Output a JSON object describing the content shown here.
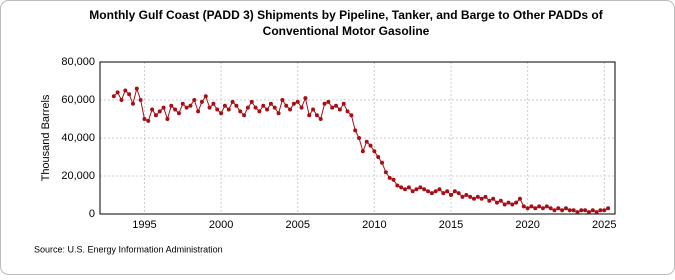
{
  "chart_data": {
    "type": "line",
    "title": [
      "Monthly Gulf Coast (PADD 3) Shipments by Pipeline, Tanker, and Barge to Other PADDs of",
      "Conventional Motor Gasoline"
    ],
    "y_label": "Thousand Barrels",
    "source": "Source: U.S. Energy Information Administration",
    "x": [
      1993,
      1993.25,
      1993.5,
      1993.75,
      1994,
      1994.25,
      1994.5,
      1994.75,
      1995,
      1995.25,
      1995.5,
      1995.75,
      1996,
      1996.25,
      1996.5,
      1996.75,
      1997,
      1997.25,
      1997.5,
      1997.75,
      1998,
      1998.25,
      1998.5,
      1998.75,
      1999,
      1999.25,
      1999.5,
      1999.75,
      2000,
      2000.25,
      2000.5,
      2000.75,
      2001,
      2001.25,
      2001.5,
      2001.75,
      2002,
      2002.25,
      2002.5,
      2002.75,
      2003,
      2003.25,
      2003.5,
      2003.75,
      2004,
      2004.25,
      2004.5,
      2004.75,
      2005,
      2005.25,
      2005.5,
      2005.75,
      2006,
      2006.25,
      2006.5,
      2006.75,
      2007,
      2007.25,
      2007.5,
      2007.75,
      2008,
      2008.25,
      2008.5,
      2008.75,
      2009,
      2009.25,
      2009.5,
      2009.75,
      2010,
      2010.25,
      2010.5,
      2010.75,
      2011,
      2011.25,
      2011.5,
      2011.75,
      2012,
      2012.25,
      2012.5,
      2012.75,
      2013,
      2013.25,
      2013.5,
      2013.75,
      2014,
      2014.25,
      2014.5,
      2014.75,
      2015,
      2015.25,
      2015.5,
      2015.75,
      2016,
      2016.25,
      2016.5,
      2016.75,
      2017,
      2017.25,
      2017.5,
      2017.75,
      2018,
      2018.25,
      2018.5,
      2018.75,
      2019,
      2019.25,
      2019.5,
      2019.75,
      2020,
      2020.25,
      2020.5,
      2020.75,
      2021,
      2021.25,
      2021.5,
      2021.75,
      2022,
      2022.25,
      2022.5,
      2022.75,
      2023,
      2023.25,
      2023.5,
      2023.75,
      2024,
      2024.25,
      2024.5,
      2024.75,
      2025,
      2025.25
    ],
    "series": [
      {
        "color": "#a50f15",
        "values": [
          62000,
          64000,
          60000,
          65000,
          63000,
          58000,
          66000,
          60000,
          50000,
          49000,
          55000,
          52000,
          54000,
          56000,
          50000,
          57000,
          55000,
          53000,
          58000,
          56000,
          57000,
          60000,
          54000,
          59000,
          62000,
          56000,
          58000,
          55000,
          53000,
          57000,
          55000,
          59000,
          57000,
          54000,
          52000,
          56000,
          59000,
          56000,
          54000,
          57000,
          55000,
          58000,
          56000,
          53000,
          60000,
          57000,
          55000,
          58000,
          59000,
          56000,
          61000,
          52000,
          55000,
          52000,
          50000,
          58000,
          59000,
          56000,
          57000,
          55000,
          58000,
          54000,
          52000,
          44000,
          40000,
          33000,
          38000,
          36000,
          33000,
          30000,
          27000,
          22000,
          19000,
          18000,
          15000,
          14000,
          13000,
          14000,
          12000,
          13000,
          14000,
          13000,
          12000,
          11000,
          12000,
          13000,
          11000,
          12000,
          10000,
          12000,
          11000,
          9000,
          10000,
          9000,
          8000,
          9000,
          8000,
          9000,
          7000,
          8000,
          6000,
          7000,
          5000,
          6000,
          5000,
          6000,
          8000,
          4000,
          3000,
          4000,
          3000,
          4000,
          3000,
          4000,
          3000,
          2000,
          3000,
          2000,
          3000,
          2000,
          2000,
          1000,
          2000,
          2000,
          1000,
          2000,
          1000,
          2000,
          2000,
          3000
        ]
      }
    ],
    "xlim": [
      1992.1,
      2025.7
    ],
    "xticks": [
      1995,
      2000,
      2005,
      2010,
      2015,
      2020,
      2025
    ],
    "ylim": [
      0,
      80000
    ],
    "yticks": [
      {
        "value": 0,
        "label": "0"
      },
      {
        "value": 20000,
        "label": "20,000"
      },
      {
        "value": 40000,
        "label": "40,000"
      },
      {
        "value": 60000,
        "label": "60,000"
      },
      {
        "value": 80000,
        "label": "80,000"
      }
    ],
    "grid": true,
    "markers": true
  }
}
